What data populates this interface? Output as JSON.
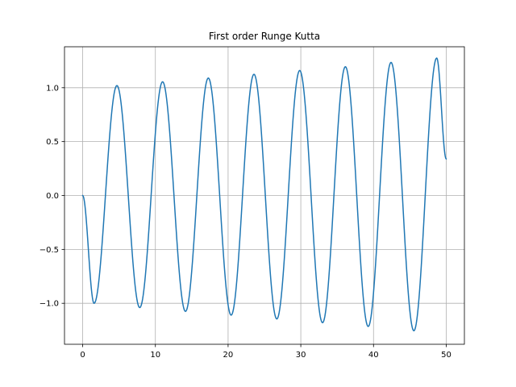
{
  "chart_data": {
    "type": "line",
    "title": "First order Runge Kutta",
    "xlabel": "",
    "ylabel": "",
    "xlim": [
      -2.5,
      52.5
    ],
    "ylim": [
      -1.38,
      1.38
    ],
    "x_ticks": [
      0,
      10,
      20,
      30,
      40,
      50
    ],
    "x_tick_labels": [
      "0",
      "10",
      "20",
      "30",
      "40",
      "50"
    ],
    "y_ticks": [
      -1.0,
      -0.5,
      0.0,
      0.5,
      1.0
    ],
    "y_tick_labels": [
      "−1.0",
      "−0.5",
      "0.0",
      "0.5",
      "1.0"
    ],
    "grid": true,
    "legend": "none",
    "series_color": "#1f77b4",
    "series": [
      {
        "x": [
          0,
          1.57,
          4.71,
          7.85,
          10.99,
          14.14,
          17.28,
          20.42,
          23.56,
          26.7,
          29.85,
          32.99,
          36.13,
          39.27,
          42.41,
          45.55,
          48.69,
          50
        ],
        "y": [
          0.0,
          -1.0,
          1.02,
          -1.04,
          1.055,
          -1.075,
          1.09,
          -1.11,
          1.125,
          -1.145,
          1.16,
          -1.18,
          1.195,
          -1.215,
          1.235,
          -1.255,
          1.275,
          0.34
        ]
      }
    ]
  }
}
